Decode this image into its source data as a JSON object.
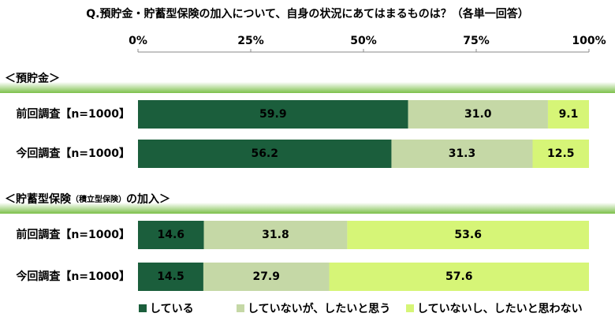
{
  "chart_data": {
    "type": "stacked-bar-h",
    "title": "Q.預貯金・貯蓄型保険の加入について、自身の状況にあてはまるものは？（各単一回答）",
    "xlim": [
      0,
      100
    ],
    "xticks": [
      {
        "value": 0,
        "label": "0%"
      },
      {
        "value": 25,
        "label": "25%"
      },
      {
        "value": 50,
        "label": "50%"
      },
      {
        "value": 75,
        "label": "75%"
      },
      {
        "value": 100,
        "label": "100%"
      }
    ],
    "series": [
      {
        "name": "している",
        "color": "#1b5e3c"
      },
      {
        "name": "していないが、したいと思う",
        "color": "#c5d8a6"
      },
      {
        "name": "していないし、したいと思わない",
        "color": "#d6f577"
      }
    ],
    "groups": [
      {
        "title_parts": [
          "＜預貯金＞"
        ],
        "rows": [
          {
            "label": "前回調査【n=1000】",
            "values": [
              59.9,
              31.0,
              9.1
            ],
            "value_labels": [
              "59.9",
              "31.0",
              "9.1"
            ]
          },
          {
            "label": "今回調査【n=1000】",
            "values": [
              56.2,
              31.3,
              12.5
            ],
            "value_labels": [
              "56.2",
              "31.3",
              "12.5"
            ]
          }
        ]
      },
      {
        "title_parts": [
          "＜貯蓄型保険",
          "（積立型保険）",
          "の加入＞"
        ],
        "rows": [
          {
            "label": "前回調査【n=1000】",
            "values": [
              14.6,
              31.8,
              53.6
            ],
            "value_labels": [
              "14.6",
              "31.8",
              "53.6"
            ]
          },
          {
            "label": "今回調査【n=1000】",
            "values": [
              14.5,
              27.9,
              57.6
            ],
            "value_labels": [
              "14.5",
              "27.9",
              "57.6"
            ]
          }
        ]
      }
    ]
  }
}
